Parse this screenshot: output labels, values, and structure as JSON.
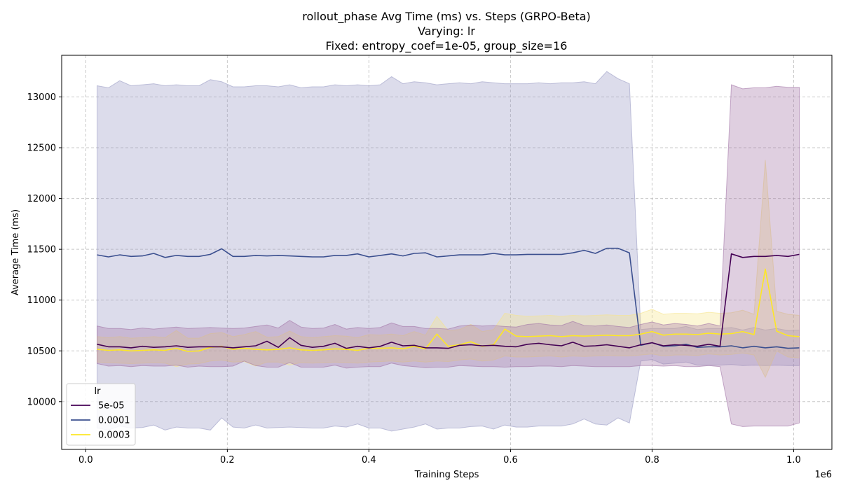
{
  "colors": {
    "series_5e-05": "#440154",
    "series_0.0001": "#3b4f8f",
    "series_0.0003": "#fde725",
    "band_5e-05": "#a275a7",
    "band_0.0001": "#9b9cc5",
    "band_0.0003": "#f7e58a",
    "grid": "#b0b0b0"
  },
  "chart_data": {
    "type": "line",
    "title_lines": [
      "rollout_phase Avg Time (ms) vs. Steps (GRPO-Beta)",
      "Varying: lr",
      "Fixed: entropy_coef=1e-05, group_size=16"
    ],
    "xlabel": "Training Steps",
    "ylabel": "Average Time (ms)",
    "x_offset_text": "1e6",
    "xlim": [
      -0.034,
      1.054
    ],
    "ylim": [
      9530,
      13410
    ],
    "xticks": [
      0.0,
      0.2,
      0.4,
      0.6,
      0.8,
      1.0
    ],
    "xtick_labels": [
      "0.0",
      "0.2",
      "0.4",
      "0.6",
      "0.8",
      "1.0"
    ],
    "yticks": [
      10000,
      10500,
      11000,
      11500,
      12000,
      12500,
      13000
    ],
    "ytick_labels": [
      "10000",
      "10500",
      "11000",
      "11500",
      "12000",
      "12500",
      "13000"
    ],
    "grid": true,
    "legend": {
      "title": "lr",
      "placement": "bottom-left"
    },
    "x": [
      0.016,
      0.032,
      0.048,
      0.064,
      0.08,
      0.096,
      0.112,
      0.128,
      0.144,
      0.16,
      0.176,
      0.192,
      0.208,
      0.224,
      0.24,
      0.256,
      0.272,
      0.288,
      0.304,
      0.32,
      0.336,
      0.352,
      0.368,
      0.384,
      0.4,
      0.416,
      0.432,
      0.448,
      0.464,
      0.48,
      0.496,
      0.512,
      0.528,
      0.544,
      0.56,
      0.576,
      0.592,
      0.608,
      0.624,
      0.64,
      0.656,
      0.672,
      0.688,
      0.704,
      0.72,
      0.736,
      0.752,
      0.768,
      0.784,
      0.8,
      0.816,
      0.832,
      0.848,
      0.864,
      0.88,
      0.896,
      0.912,
      0.928,
      0.944,
      0.96,
      0.976,
      0.992,
      1.008
    ],
    "series": [
      {
        "name": "5e-05",
        "values": [
          10565,
          10540,
          10540,
          10530,
          10545,
          10535,
          10540,
          10550,
          10535,
          10540,
          10540,
          10540,
          10530,
          10540,
          10550,
          10595,
          10535,
          10630,
          10555,
          10535,
          10545,
          10575,
          10525,
          10545,
          10530,
          10545,
          10585,
          10550,
          10555,
          10530,
          10530,
          10525,
          10555,
          10560,
          10550,
          10555,
          10545,
          10540,
          10565,
          10575,
          10560,
          10550,
          10585,
          10545,
          10550,
          10560,
          10545,
          10530,
          10560,
          10580,
          10550,
          10560,
          10555,
          10545,
          10565,
          10545,
          11455,
          11420,
          11430,
          11430,
          11440,
          11430,
          11450
        ],
        "lower": [
          10375,
          10350,
          10355,
          10345,
          10355,
          10350,
          10350,
          10360,
          10340,
          10350,
          10345,
          10345,
          10350,
          10400,
          10355,
          10340,
          10340,
          10385,
          10340,
          10340,
          10340,
          10360,
          10330,
          10340,
          10345,
          10345,
          10380,
          10355,
          10345,
          10335,
          10340,
          10340,
          10355,
          10350,
          10345,
          10345,
          10340,
          10345,
          10345,
          10350,
          10350,
          10345,
          10355,
          10350,
          10345,
          10345,
          10345,
          10345,
          10355,
          10355,
          10350,
          10355,
          10345,
          10345,
          10355,
          10345,
          9780,
          9755,
          9760,
          9760,
          9760,
          9760,
          9790
        ],
        "upper": [
          10745,
          10720,
          10720,
          10710,
          10725,
          10715,
          10725,
          10735,
          10720,
          10725,
          10730,
          10725,
          10720,
          10725,
          10740,
          10755,
          10725,
          10800,
          10735,
          10720,
          10725,
          10760,
          10715,
          10730,
          10720,
          10730,
          10775,
          10740,
          10740,
          10720,
          10720,
          10715,
          10745,
          10755,
          10745,
          10750,
          10740,
          10735,
          10760,
          10770,
          10755,
          10750,
          10790,
          10750,
          10745,
          10755,
          10740,
          10730,
          10760,
          10785,
          10755,
          10770,
          10760,
          10745,
          10770,
          10745,
          13120,
          13080,
          13090,
          13090,
          13105,
          13095,
          13095
        ]
      },
      {
        "name": "0.0001",
        "values": [
          11445,
          11425,
          11445,
          11430,
          11435,
          11460,
          11420,
          11440,
          11430,
          11430,
          11450,
          11505,
          11430,
          11430,
          11440,
          11435,
          11440,
          11435,
          11430,
          11425,
          11425,
          11440,
          11440,
          11455,
          11425,
          11440,
          11455,
          11435,
          11460,
          11465,
          11425,
          11435,
          11445,
          11445,
          11445,
          11460,
          11445,
          11445,
          11450,
          11450,
          11450,
          11450,
          11465,
          11490,
          11460,
          11510,
          11510,
          11465,
          10555,
          10580,
          10545,
          10550,
          10565,
          10535,
          10540,
          10540,
          10550,
          10530,
          10545,
          10530,
          10540,
          10525,
          10530
        ],
        "lower": [
          9740,
          9720,
          9760,
          9740,
          9745,
          9770,
          9720,
          9750,
          9740,
          9740,
          9720,
          9840,
          9750,
          9740,
          9770,
          9740,
          9745,
          9750,
          9745,
          9740,
          9740,
          9760,
          9750,
          9780,
          9740,
          9740,
          9710,
          9730,
          9750,
          9780,
          9730,
          9740,
          9740,
          9755,
          9760,
          9730,
          9770,
          9750,
          9750,
          9760,
          9760,
          9760,
          9780,
          9830,
          9780,
          9770,
          9840,
          9790,
          10400,
          10415,
          10370,
          10380,
          10390,
          10360,
          10360,
          10360,
          10365,
          10355,
          10360,
          10355,
          10360,
          10355,
          10355
        ],
        "upper": [
          13110,
          13090,
          13160,
          13110,
          13120,
          13130,
          13110,
          13120,
          13110,
          13110,
          13170,
          13150,
          13100,
          13100,
          13110,
          13110,
          13100,
          13120,
          13090,
          13100,
          13100,
          13120,
          13110,
          13120,
          13110,
          13120,
          13200,
          13130,
          13150,
          13140,
          13120,
          13130,
          13140,
          13130,
          13150,
          13140,
          13130,
          13130,
          13130,
          13140,
          13130,
          13140,
          13140,
          13150,
          13130,
          13250,
          13180,
          13130,
          10710,
          10720,
          10720,
          10720,
          10740,
          10710,
          10720,
          10720,
          10730,
          10705,
          10730,
          10705,
          10720,
          10700,
          10705
        ]
      },
      {
        "name": "0.0003",
        "values": [
          10515,
          10505,
          10510,
          10500,
          10505,
          10510,
          10505,
          10525,
          10495,
          10500,
          10535,
          10545,
          10515,
          10525,
          10515,
          10510,
          10515,
          10530,
          10510,
          10505,
          10510,
          10520,
          10515,
          10505,
          10525,
          10525,
          10530,
          10520,
          10545,
          10520,
          10665,
          10545,
          10560,
          10590,
          10545,
          10560,
          10715,
          10645,
          10640,
          10645,
          10650,
          10640,
          10650,
          10645,
          10650,
          10655,
          10650,
          10650,
          10665,
          10690,
          10655,
          10665,
          10665,
          10660,
          10675,
          10665,
          10670,
          10690,
          10660,
          11305,
          10695,
          10650,
          10640
        ],
        "lower": [
          10390,
          10385,
          10380,
          10375,
          10380,
          10385,
          10380,
          10345,
          10370,
          10375,
          10400,
          10410,
          10390,
          10395,
          10350,
          10390,
          10390,
          10360,
          10385,
          10380,
          10385,
          10390,
          10385,
          10380,
          10390,
          10395,
          10400,
          10390,
          10400,
          10390,
          10400,
          10395,
          10410,
          10420,
          10400,
          10410,
          10450,
          10440,
          10440,
          10445,
          10450,
          10440,
          10450,
          10445,
          10450,
          10455,
          10450,
          10450,
          10460,
          10470,
          10450,
          10460,
          10460,
          10455,
          10470,
          10460,
          10465,
          10480,
          10460,
          10240,
          10500,
          10440,
          10430
        ],
        "upper": [
          10640,
          10630,
          10640,
          10625,
          10630,
          10640,
          10630,
          10700,
          10625,
          10625,
          10670,
          10680,
          10640,
          10660,
          10690,
          10635,
          10640,
          10695,
          10640,
          10630,
          10640,
          10650,
          10645,
          10630,
          10660,
          10655,
          10665,
          10650,
          10690,
          10655,
          10840,
          10700,
          10710,
          10760,
          10690,
          10710,
          10870,
          10850,
          10840,
          10845,
          10850,
          10840,
          10850,
          10845,
          10850,
          10855,
          10850,
          10850,
          10870,
          10910,
          10860,
          10870,
          10870,
          10865,
          10880,
          10870,
          10875,
          10900,
          10860,
          12380,
          10890,
          10860,
          10850
        ]
      }
    ]
  }
}
